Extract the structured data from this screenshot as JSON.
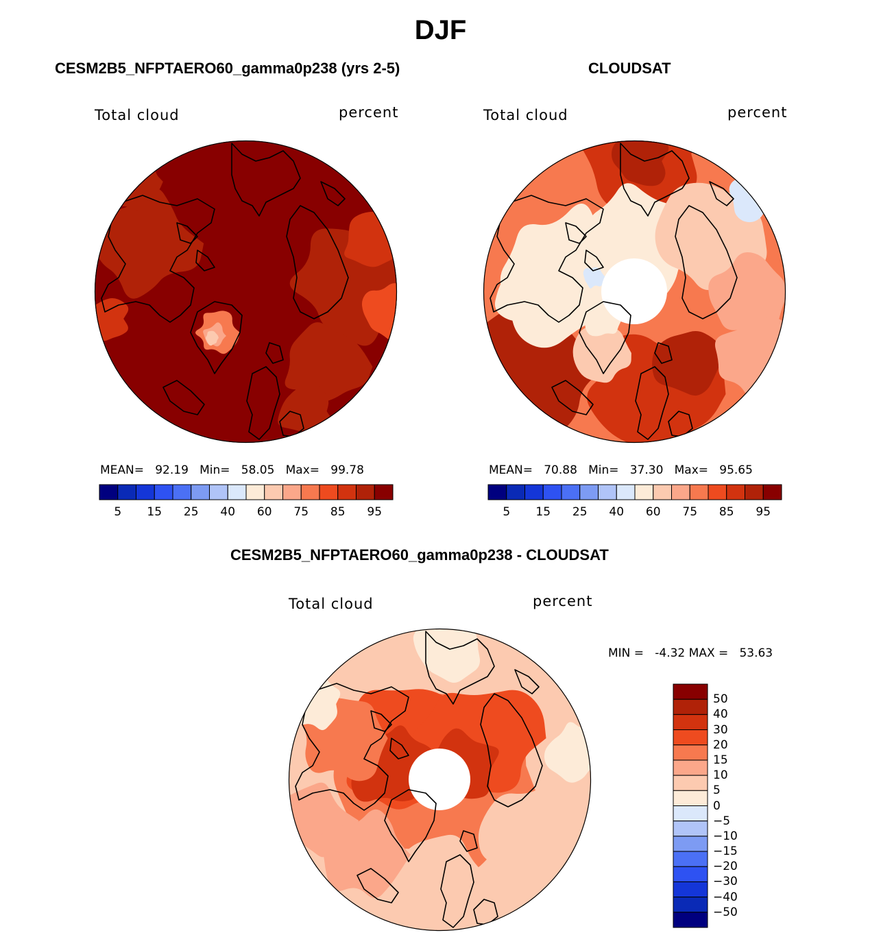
{
  "figure": {
    "title": "DJF"
  },
  "colors": {
    "seq": [
      "#00007f",
      "#0a2ab6",
      "#1436d8",
      "#2e52f2",
      "#4b70f5",
      "#7d9bf3",
      "#b0c4f8",
      "#dbe8fb",
      "#fdebd8",
      "#fccab0",
      "#fba78a",
      "#f7794f",
      "#ee4b1f",
      "#d2330f",
      "#b02208",
      "#880000"
    ],
    "div": [
      "#880000",
      "#b02208",
      "#d2330f",
      "#ee4b1f",
      "#f7794f",
      "#fba78a",
      "#fccab0",
      "#fdebd8",
      "#dbe8fb",
      "#b0c4f8",
      "#7d9bf3",
      "#4b70f5",
      "#2e52f2",
      "#1436d8",
      "#0a2ab6",
      "#00007f"
    ],
    "coast": "#000000"
  },
  "chart_data": [
    {
      "type": "heatmap",
      "projection": "north-polar-stereographic",
      "title": "CESM2B5_NFPTAERO60_gamma0p238 (yrs 2-5)",
      "left_label": "Total cloud",
      "right_label": "percent",
      "stats": {
        "mean_label": "MEAN=",
        "mean": "92.19",
        "min_label": "Min=",
        "min": "58.05",
        "max_label": "Max=",
        "max": "99.78"
      },
      "colorbar": {
        "orientation": "horizontal",
        "tick_labels": [
          "5",
          "15",
          "25",
          "40",
          "60",
          "75",
          "85",
          "95"
        ]
      },
      "dominant_level": 15
    },
    {
      "type": "heatmap",
      "projection": "north-polar-stereographic",
      "title": "CLOUDSAT",
      "left_label": "Total cloud",
      "right_label": "percent",
      "stats": {
        "mean_label": "MEAN=",
        "mean": "70.88",
        "min_label": "Min=",
        "min": "37.30",
        "max_label": "Max=",
        "max": "95.65"
      },
      "colorbar": {
        "orientation": "horizontal",
        "tick_labels": [
          "5",
          "15",
          "25",
          "40",
          "60",
          "75",
          "85",
          "95"
        ]
      },
      "missing_pole": true
    },
    {
      "type": "heatmap",
      "projection": "north-polar-stereographic",
      "title": "CESM2B5_NFPTAERO60_gamma0p238 - CLOUDSAT",
      "left_label": "Total cloud",
      "right_label": "percent",
      "stats_text": "MIN =   -4.32 MAX =   53.63",
      "colorbar": {
        "orientation": "vertical",
        "tick_labels": [
          "50",
          "40",
          "30",
          "20",
          "15",
          "10",
          "5",
          "0",
          "−5",
          "−10",
          "−15",
          "−20",
          "−30",
          "−40",
          "−50"
        ]
      },
      "missing_pole": true
    }
  ]
}
